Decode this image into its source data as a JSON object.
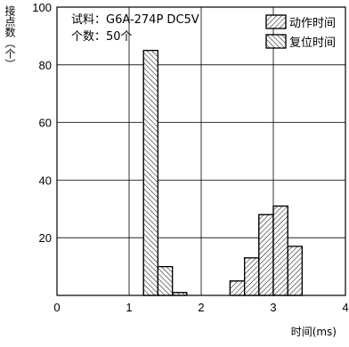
{
  "chart_data": {
    "type": "bar",
    "title": "",
    "ylabel": "接点数（个）",
    "xlabel": "时间(ms)",
    "xlim": [
      0,
      4
    ],
    "ylim": [
      0,
      100
    ],
    "x_ticks": [
      "0",
      "1",
      "2",
      "3",
      "4"
    ],
    "y_ticks": [
      "20",
      "40",
      "60",
      "80",
      "100"
    ],
    "grid": true,
    "legend_position": "top-right",
    "annotation": {
      "line1": "试料：G6A-274P DC5V",
      "line2": "个数：50个"
    },
    "series": [
      {
        "name": "动作时间",
        "hatch": "forward",
        "bins": [
          {
            "x0": 2.4,
            "x1": 2.6,
            "value": 5
          },
          {
            "x0": 2.6,
            "x1": 2.8,
            "value": 13
          },
          {
            "x0": 2.8,
            "x1": 3.0,
            "value": 28
          },
          {
            "x0": 3.0,
            "x1": 3.2,
            "value": 31
          },
          {
            "x0": 3.2,
            "x1": 3.4,
            "value": 17
          }
        ]
      },
      {
        "name": "复位时间",
        "hatch": "backward",
        "bins": [
          {
            "x0": 1.2,
            "x1": 1.4,
            "value": 85
          },
          {
            "x0": 1.4,
            "x1": 1.6,
            "value": 10
          },
          {
            "x0": 1.6,
            "x1": 1.8,
            "value": 1
          }
        ]
      }
    ]
  }
}
